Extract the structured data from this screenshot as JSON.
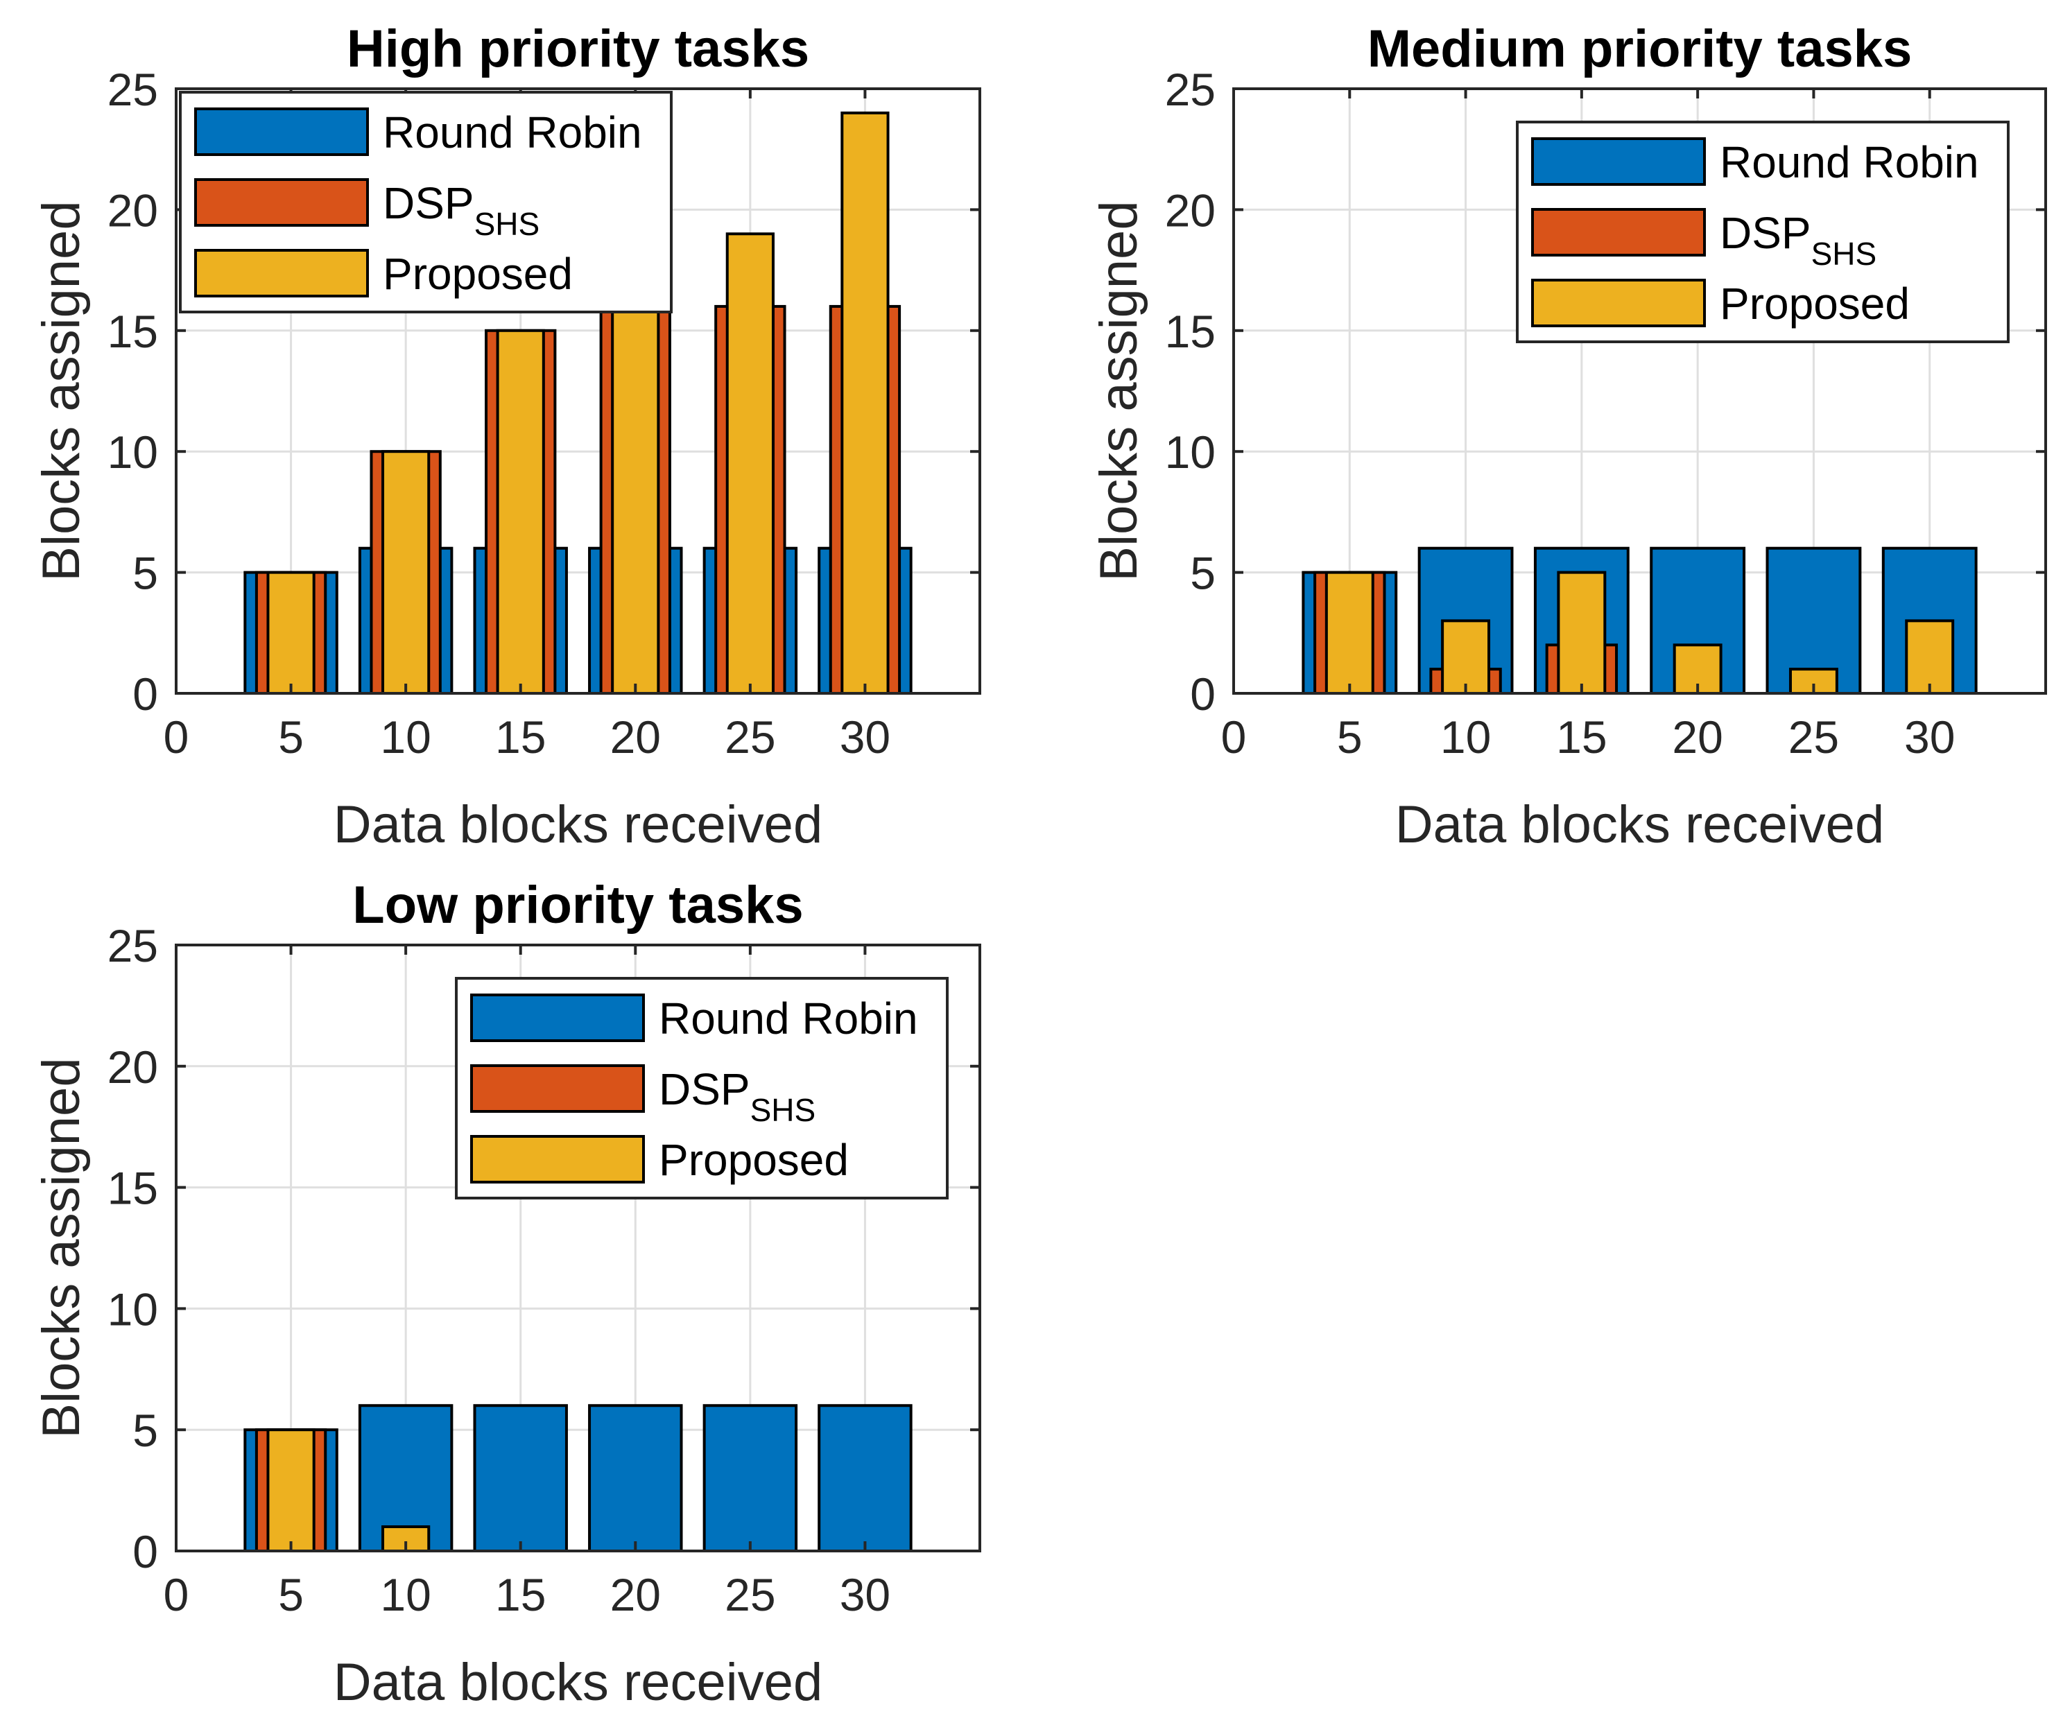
{
  "colors": {
    "round_robin": "#0072BD",
    "dsp_shs": "#D95319",
    "proposed": "#EDB120"
  },
  "chart_data": [
    {
      "type": "bar",
      "title": "High priority tasks",
      "xlabel": "Data blocks received",
      "ylabel": "Blocks assigned",
      "xlim": [
        0,
        35
      ],
      "ylim": [
        0,
        25
      ],
      "xticks": [
        0,
        5,
        10,
        15,
        20,
        25,
        30
      ],
      "yticks": [
        0,
        5,
        10,
        15,
        20,
        25
      ],
      "grid": true,
      "legend_location": "top-left",
      "x": [
        5,
        10,
        15,
        20,
        25,
        30
      ],
      "series": [
        {
          "name": "Round Robin",
          "label": "Round Robin",
          "values": [
            5,
            6,
            6,
            6,
            6,
            6
          ]
        },
        {
          "name": "DSP_SHS",
          "label": "DSP",
          "subscript": "SHS",
          "values": [
            5,
            10,
            15,
            16,
            16,
            16
          ]
        },
        {
          "name": "Proposed",
          "label": "Proposed",
          "values": [
            5,
            10,
            15,
            16,
            19,
            24
          ]
        }
      ]
    },
    {
      "type": "bar",
      "title": "Medium priority tasks",
      "xlabel": "Data blocks received",
      "ylabel": "Blocks assigned",
      "xlim": [
        0,
        35
      ],
      "ylim": [
        0,
        25
      ],
      "xticks": [
        0,
        5,
        10,
        15,
        20,
        25,
        30
      ],
      "yticks": [
        0,
        5,
        10,
        15,
        20,
        25
      ],
      "grid": true,
      "legend_location": "top-right",
      "x": [
        5,
        10,
        15,
        20,
        25,
        30
      ],
      "series": [
        {
          "name": "Round Robin",
          "label": "Round Robin",
          "values": [
            5,
            6,
            6,
            6,
            6,
            6
          ]
        },
        {
          "name": "DSP_SHS",
          "label": "DSP",
          "subscript": "SHS",
          "values": [
            5,
            1,
            2,
            0,
            0,
            0
          ]
        },
        {
          "name": "Proposed",
          "label": "Proposed",
          "values": [
            5,
            3,
            5,
            2,
            1,
            3
          ]
        }
      ]
    },
    {
      "type": "bar",
      "title": "Low priority tasks",
      "xlabel": "Data blocks received",
      "ylabel": "Blocks assigned",
      "xlim": [
        0,
        35
      ],
      "ylim": [
        0,
        25
      ],
      "xticks": [
        0,
        5,
        10,
        15,
        20,
        25,
        30
      ],
      "yticks": [
        0,
        5,
        10,
        15,
        20,
        25
      ],
      "grid": true,
      "legend_location": "top-right",
      "x": [
        5,
        10,
        15,
        20,
        25,
        30
      ],
      "series": [
        {
          "name": "Round Robin",
          "label": "Round Robin",
          "values": [
            5,
            6,
            6,
            6,
            6,
            6
          ]
        },
        {
          "name": "DSP_SHS",
          "label": "DSP",
          "subscript": "SHS",
          "values": [
            5,
            0,
            0,
            0,
            0,
            0
          ]
        },
        {
          "name": "Proposed",
          "label": "Proposed",
          "values": [
            5,
            1,
            0,
            0,
            0,
            0
          ]
        }
      ]
    }
  ]
}
